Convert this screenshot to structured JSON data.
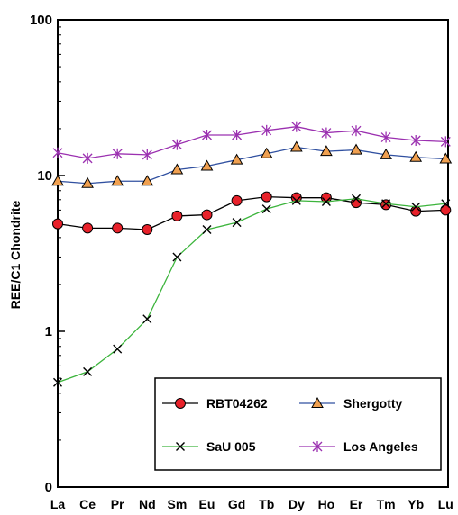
{
  "chart_data": {
    "type": "line",
    "title": "",
    "xlabel": "",
    "ylabel": "REE/C1 Chondrite",
    "yscale": "log",
    "ylim": [
      0,
      100
    ],
    "y_ticks": [
      {
        "value": 0,
        "label": "0"
      },
      {
        "value": 1,
        "label": "1"
      },
      {
        "value": 10,
        "label": "10"
      },
      {
        "value": 100,
        "label": "100"
      }
    ],
    "categories": [
      "La",
      "Ce",
      "Pr",
      "Nd",
      "Sm",
      "Eu",
      "Gd",
      "Tb",
      "Dy",
      "Ho",
      "Er",
      "Tm",
      "Yb",
      "Lu"
    ],
    "grid": false,
    "legend_position": "bottom-right",
    "series": [
      {
        "name": "RBT04262",
        "color": "#000000",
        "line_color": "#000000",
        "marker": "circle",
        "marker_fill": "#e8212a",
        "values": [
          4.9,
          4.6,
          4.6,
          4.5,
          5.5,
          5.6,
          6.9,
          7.3,
          7.2,
          7.2,
          6.7,
          6.5,
          5.9,
          6.0
        ]
      },
      {
        "name": "Shergotty",
        "color": "#3050a0",
        "line_color": "#3050a0",
        "marker": "triangle",
        "marker_fill": "#f0a050",
        "values": [
          9.2,
          8.9,
          9.2,
          9.2,
          10.9,
          11.5,
          12.6,
          13.8,
          15.2,
          14.3,
          14.6,
          13.6,
          13.1,
          12.8
        ]
      },
      {
        "name": "SaU 005",
        "color": "#3cb43c",
        "line_color": "#3cb43c",
        "marker": "x",
        "marker_fill": "#000000",
        "values": [
          0.47,
          0.55,
          0.77,
          1.2,
          3.0,
          4.5,
          5.0,
          6.1,
          6.9,
          6.8,
          7.1,
          6.6,
          6.3,
          6.6
        ]
      },
      {
        "name": "Los Angeles",
        "color": "#9b30b0",
        "line_color": "#9b30b0",
        "marker": "asterisk",
        "marker_fill": "#9b30b0",
        "values": [
          14.0,
          12.9,
          13.8,
          13.6,
          15.8,
          18.2,
          18.2,
          19.5,
          20.6,
          18.8,
          19.4,
          17.6,
          16.8,
          16.5
        ]
      }
    ]
  }
}
